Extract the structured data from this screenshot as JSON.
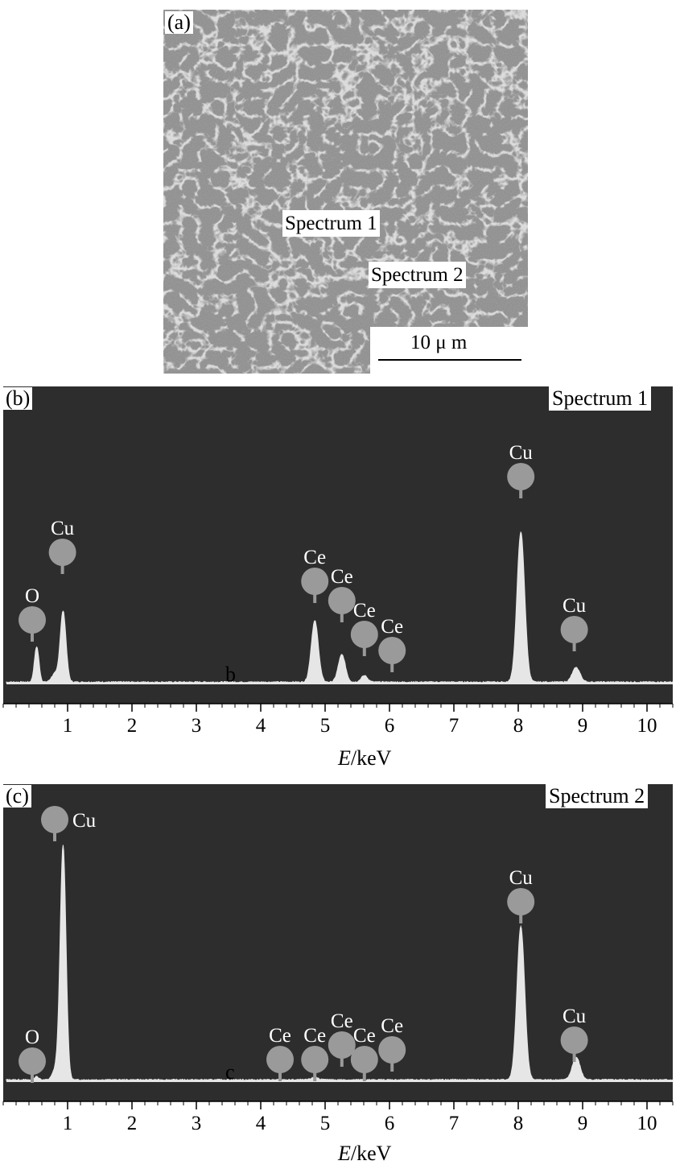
{
  "panel_a": {
    "label": "(a)",
    "markers": [
      "Spectrum 1",
      "Spectrum 2"
    ],
    "scale_bar": "10 μ m"
  },
  "chart_data": [
    {
      "type": "line",
      "panel_label": "(b)",
      "title": "Spectrum 1",
      "xlabel_italic": "E",
      "xlabel_rest": "/keV",
      "xlim": [
        0,
        10.4
      ],
      "ylim": [
        0,
        100
      ],
      "xticks": [
        "1",
        "2",
        "3",
        "4",
        "5",
        "6",
        "7",
        "8",
        "9",
        "10"
      ],
      "trace_label": "b",
      "series": [
        {
          "peaks": [
            {
              "e": 0.52,
              "h": 22,
              "w": 0.035
            },
            {
              "e": 0.93,
              "h": 44,
              "w": 0.045
            },
            {
              "e": 0.8,
              "h": 5,
              "w": 0.05
            },
            {
              "e": 4.84,
              "h": 38,
              "w": 0.055
            },
            {
              "e": 5.26,
              "h": 17,
              "w": 0.055
            },
            {
              "e": 5.61,
              "h": 4,
              "w": 0.05
            },
            {
              "e": 8.04,
              "h": 93,
              "w": 0.06
            },
            {
              "e": 8.9,
              "h": 9,
              "w": 0.06
            }
          ]
        }
      ],
      "annotations": [
        {
          "text": "O",
          "e": 0.45,
          "h": 39
        },
        {
          "text": "Cu",
          "e": 0.92,
          "h": 81
        },
        {
          "text": "Ce",
          "e": 4.84,
          "h": 63
        },
        {
          "text": "Ce",
          "e": 5.26,
          "h": 51
        },
        {
          "text": "Ce",
          "e": 5.61,
          "h": 30
        },
        {
          "text": "Ce",
          "e": 6.04,
          "h": 20
        },
        {
          "text": "Cu",
          "e": 8.04,
          "h": 128
        },
        {
          "text": "Cu",
          "e": 8.87,
          "h": 33
        }
      ]
    },
    {
      "type": "line",
      "panel_label": "(c)",
      "title": "Spectrum 2",
      "xlabel_italic": "E",
      "xlabel_rest": "/keV",
      "xlim": [
        0,
        10.4
      ],
      "ylim": [
        0,
        100
      ],
      "xticks": [
        "1",
        "2",
        "3",
        "4",
        "5",
        "6",
        "7",
        "8",
        "9",
        "10"
      ],
      "trace_label": "c",
      "series": [
        {
          "peaks": [
            {
              "e": 0.52,
              "h": 2,
              "w": 0.035
            },
            {
              "e": 0.82,
              "h": 7,
              "w": 0.05
            },
            {
              "e": 0.93,
              "h": 145,
              "w": 0.045
            },
            {
              "e": 4.84,
              "h": 1.5,
              "w": 0.055
            },
            {
              "e": 8.04,
              "h": 95,
              "w": 0.06
            },
            {
              "e": 8.9,
              "h": 14,
              "w": 0.06
            }
          ]
        }
      ],
      "annotations": [
        {
          "text": "O",
          "e": 0.45,
          "h": 12
        },
        {
          "text": "Cu",
          "e": 0.8,
          "h": 162
        },
        {
          "text": "Ce",
          "e": 4.3,
          "h": 13
        },
        {
          "text": "Ce",
          "e": 4.84,
          "h": 13
        },
        {
          "text": "Ce",
          "e": 5.26,
          "h": 22
        },
        {
          "text": "Ce",
          "e": 5.61,
          "h": 13
        },
        {
          "text": "Ce",
          "e": 6.04,
          "h": 19
        },
        {
          "text": "Cu",
          "e": 8.04,
          "h": 111
        },
        {
          "text": "Cu",
          "e": 8.87,
          "h": 25
        }
      ]
    }
  ],
  "colors": {
    "plot_bg": "#2d2d2d",
    "trace": "#e6e6e6",
    "marker": "#9a9a9a",
    "label_text": "#ffffff"
  }
}
